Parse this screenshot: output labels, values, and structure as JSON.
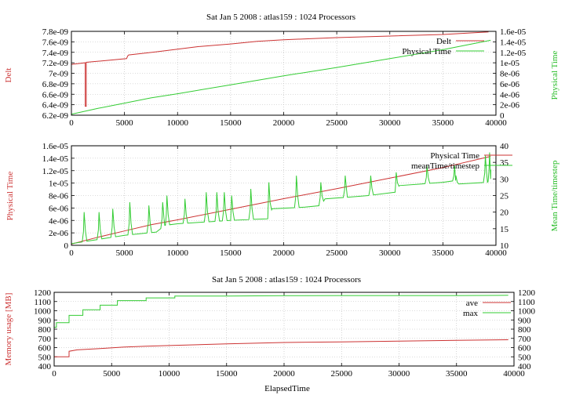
{
  "chart_data": [
    {
      "type": "line",
      "title": "Sat Jan 5 2008 : atlas159 : 1024 Processors",
      "xlabel": "",
      "ylabel": "Delt",
      "y2label": "Physical Time",
      "xlim": [
        0,
        40000
      ],
      "ylim": [
        6.2e-09,
        7.8e-09
      ],
      "y2lim": [
        0,
        1.6e-05
      ],
      "x_ticks": [
        "0",
        "5000",
        "10000",
        "15000",
        "20000",
        "25000",
        "30000",
        "35000",
        "40000"
      ],
      "y_ticks": [
        "6.2e-09",
        "6.4e-09",
        "6.6e-09",
        "6.8e-09",
        "7e-09",
        "7.2e-09",
        "7.4e-09",
        "7.6e-09",
        "7.8e-09"
      ],
      "y2_ticks": [
        "0",
        "2e-06",
        "4e-06",
        "6e-06",
        "8e-06",
        "1e-05",
        "1.2e-05",
        "1.4e-05",
        "1.6e-05"
      ],
      "grid": true,
      "legend": "top-right",
      "series": [
        {
          "name": "Delt",
          "axis": "y",
          "color": "#cc3333",
          "x": [
            0,
            1300,
            1300,
            1400,
            1400,
            2000,
            5200,
            5300,
            5400,
            8000,
            10000,
            12000,
            15000,
            17500,
            20000,
            22500,
            25000,
            30000,
            35000,
            39300
          ],
          "y": [
            7.17e-09,
            7.2e-09,
            6.37e-09,
            6.37e-09,
            7.21e-09,
            7.22e-09,
            7.28e-09,
            7.33e-09,
            7.35e-09,
            7.41e-09,
            7.46e-09,
            7.51e-09,
            7.56e-09,
            7.61e-09,
            7.64e-09,
            7.66e-09,
            7.68e-09,
            7.71e-09,
            7.74e-09,
            7.79e-09
          ]
        },
        {
          "name": "Physical Time",
          "axis": "y2",
          "color": "#33cc33",
          "x": [
            0,
            2500,
            5000,
            7500,
            10000,
            15000,
            20000,
            25000,
            30000,
            35000,
            39500
          ],
          "y": [
            2e-07,
            1.3e-06,
            2.3e-06,
            3.3e-06,
            4.1e-06,
            5.8e-06,
            7.5e-06,
            9.1e-06,
            1.08e-05,
            1.25e-05,
            1.43e-05
          ]
        }
      ]
    },
    {
      "type": "line",
      "title": "",
      "xlabel": "",
      "ylabel": "Physical Time",
      "y2label": "Mean Time/timestep",
      "xlim": [
        0,
        40000
      ],
      "ylim": [
        0,
        1.6e-05
      ],
      "y2lim": [
        10,
        40
      ],
      "x_ticks": [
        "0",
        "5000",
        "10000",
        "15000",
        "20000",
        "25000",
        "30000",
        "35000",
        "40000"
      ],
      "y_ticks": [
        "0",
        "2e-06",
        "4e-06",
        "6e-06",
        "8e-06",
        "1e-05",
        "1.2e-05",
        "1.4e-05",
        "1.6e-05"
      ],
      "y2_ticks": [
        "10",
        "15",
        "20",
        "25",
        "30",
        "35",
        "40"
      ],
      "grid": true,
      "legend": "top-right",
      "series": [
        {
          "name": "Physical Time",
          "axis": "y",
          "color": "#cc3333",
          "x": [
            0,
            2500,
            5000,
            7500,
            10000,
            15000,
            20000,
            25000,
            30000,
            35000,
            39500
          ],
          "y": [
            2e-07,
            1.3e-06,
            2.3e-06,
            3.3e-06,
            4.1e-06,
            5.8e-06,
            7.5e-06,
            9.1e-06,
            1.08e-05,
            1.25e-05,
            1.43e-05
          ]
        },
        {
          "name": "meanTime/timestep",
          "axis": "y2",
          "color": "#33cc33",
          "base_x": [
            0,
            2000,
            5000,
            8000,
            8800,
            10000,
            15000,
            18500,
            18900,
            22000,
            23500,
            23900,
            26000,
            28000,
            30500,
            30900,
            33000,
            35000,
            36200,
            36500,
            39200,
            39500
          ],
          "base_y": [
            10.5,
            11.5,
            13,
            14,
            16,
            16.5,
            17.5,
            18,
            21,
            21.5,
            22,
            24,
            24.5,
            25,
            26,
            28,
            28.5,
            29,
            29.5,
            28.5,
            29,
            30
          ],
          "spike_x": [
            1200,
            2600,
            3900,
            5500,
            7300,
            8600,
            9000,
            10700,
            12700,
            13700,
            14400,
            15100,
            16900,
            18600,
            21200,
            23500,
            25800,
            28200,
            30600,
            33500,
            36100,
            39000,
            39400
          ],
          "spike_y": [
            20,
            20,
            21,
            23,
            22,
            23,
            25,
            24,
            26,
            26,
            26,
            25,
            27,
            29,
            31,
            29,
            31,
            31,
            32,
            34,
            34,
            37,
            38
          ]
        }
      ]
    },
    {
      "type": "line",
      "title": "Sat Jan 5 2008 : atlas159 : 1024 Processors",
      "xlabel": "ElapsedTime",
      "ylabel": "Memory usage [MB]",
      "y2label": "",
      "xlim": [
        0,
        40000
      ],
      "ylim": [
        400,
        1200
      ],
      "y2lim": [
        400,
        1200
      ],
      "x_ticks": [
        "0",
        "5000",
        "10000",
        "15000",
        "20000",
        "25000",
        "30000",
        "35000",
        "40000"
      ],
      "y_ticks": [
        "400",
        "500",
        "600",
        "700",
        "800",
        "900",
        "1000",
        "1100",
        "1200"
      ],
      "y2_ticks": [
        "400",
        "500",
        "600",
        "700",
        "800",
        "900",
        "1000",
        "1100",
        "1200"
      ],
      "grid": true,
      "legend": "top-right",
      "series": [
        {
          "name": "ave",
          "axis": "y",
          "color": "#cc3333",
          "x": [
            0,
            1300,
            1300,
            2000,
            4000,
            6000,
            8000,
            10000,
            15000,
            20000,
            25000,
            30000,
            35000,
            39500
          ],
          "y": [
            500,
            500,
            560,
            575,
            590,
            605,
            615,
            622,
            640,
            655,
            662,
            670,
            678,
            685
          ]
        },
        {
          "name": "max",
          "axis": "y",
          "color": "#33cc33",
          "x": [
            0,
            200,
            200,
            1300,
            1300,
            2500,
            2500,
            4000,
            4000,
            5500,
            5500,
            8000,
            8000,
            10500,
            10500,
            15000,
            20000,
            25000,
            30000,
            35000,
            39500
          ],
          "y": [
            820,
            820,
            870,
            870,
            950,
            950,
            1010,
            1010,
            1060,
            1060,
            1110,
            1110,
            1140,
            1140,
            1160,
            1160,
            1163,
            1165,
            1165,
            1165,
            1168
          ]
        }
      ]
    }
  ]
}
